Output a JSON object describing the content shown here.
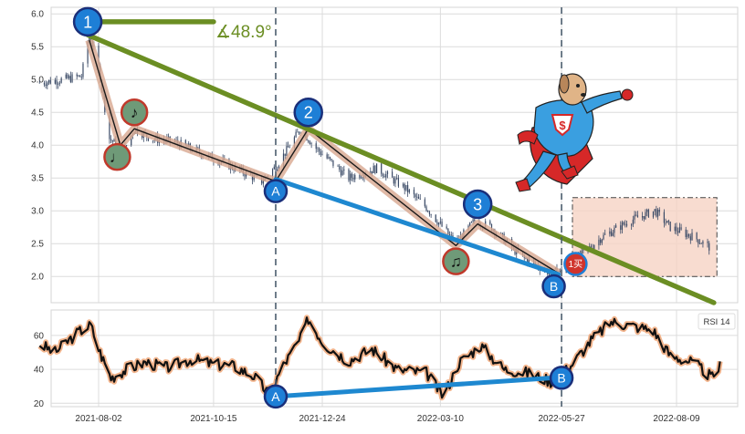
{
  "chart_data": [
    {
      "type": "candlestick",
      "panel": "price",
      "x_dates": [
        "2021-08-02",
        "2021-10-15",
        "2021-12-24",
        "2022-03-10",
        "2022-05-27",
        "2022-08-09"
      ],
      "ylim": [
        1.6,
        6.1
      ],
      "yticks": [
        2.0,
        2.5,
        3.0,
        3.5,
        4.0,
        4.5,
        5.0,
        5.5,
        6.0
      ],
      "grid": true,
      "approx_close_path": [
        [
          "2021-06-25",
          4.95
        ],
        [
          "2021-07-10",
          5.0
        ],
        [
          "2021-07-22",
          5.05
        ],
        [
          "2021-07-27",
          5.7
        ],
        [
          "2021-08-02",
          5.2
        ],
        [
          "2021-08-09",
          4.1
        ],
        [
          "2021-08-18",
          3.9
        ],
        [
          "2021-08-25",
          4.25
        ],
        [
          "2021-09-05",
          4.1
        ],
        [
          "2021-09-20",
          4.05
        ],
        [
          "2021-10-05",
          3.9
        ],
        [
          "2021-10-20",
          3.75
        ],
        [
          "2021-11-02",
          3.6
        ],
        [
          "2021-11-15",
          3.45
        ],
        [
          "2021-11-25",
          3.7
        ],
        [
          "2021-12-10",
          4.25
        ],
        [
          "2021-12-20",
          3.95
        ],
        [
          "2022-01-10",
          3.5
        ],
        [
          "2022-01-28",
          3.65
        ],
        [
          "2022-02-15",
          3.35
        ],
        [
          "2022-03-01",
          3.05
        ],
        [
          "2022-03-20",
          2.5
        ],
        [
          "2022-04-01",
          2.85
        ],
        [
          "2022-04-12",
          2.75
        ],
        [
          "2022-05-01",
          2.3
        ],
        [
          "2022-05-20",
          2.05
        ],
        [
          "2022-05-30",
          2.1
        ],
        [
          "2022-06-10",
          2.35
        ],
        [
          "2022-06-22",
          2.6
        ],
        [
          "2022-07-10",
          2.85
        ],
        [
          "2022-07-26",
          3.0
        ],
        [
          "2022-08-05",
          2.75
        ],
        [
          "2022-08-20",
          2.6
        ],
        [
          "2022-08-30",
          2.45
        ]
      ]
    },
    {
      "type": "line",
      "panel": "indicator",
      "series": [
        {
          "name": "RSI 14",
          "values": [
            [
              "2021-06-25",
              55
            ],
            [
              "2021-07-05",
              50
            ],
            [
              "2021-07-20",
              62
            ],
            [
              "2021-07-28",
              66
            ],
            [
              "2021-08-02",
              52
            ],
            [
              "2021-08-10",
              35
            ],
            [
              "2021-08-20",
              40
            ],
            [
              "2021-09-01",
              44
            ],
            [
              "2021-09-15",
              41
            ],
            [
              "2021-10-01",
              46
            ],
            [
              "2021-10-15",
              43
            ],
            [
              "2021-10-28",
              42
            ],
            [
              "2021-11-10",
              36
            ],
            [
              "2021-11-20",
              25
            ],
            [
              "2021-11-28",
              41
            ],
            [
              "2021-12-10",
              58
            ],
            [
              "2021-12-15",
              70
            ],
            [
              "2021-12-25",
              55
            ],
            [
              "2022-01-10",
              45
            ],
            [
              "2022-01-25",
              52
            ],
            [
              "2022-02-10",
              40
            ],
            [
              "2022-03-01",
              38
            ],
            [
              "2022-03-12",
              24
            ],
            [
              "2022-03-22",
              44
            ],
            [
              "2022-04-05",
              54
            ],
            [
              "2022-04-20",
              40
            ],
            [
              "2022-05-05",
              38
            ],
            [
              "2022-05-20",
              33
            ],
            [
              "2022-06-01",
              41
            ],
            [
              "2022-06-15",
              57
            ],
            [
              "2022-06-28",
              68
            ],
            [
              "2022-07-10",
              66
            ],
            [
              "2022-07-25",
              63
            ],
            [
              "2022-08-05",
              48
            ],
            [
              "2022-08-20",
              44
            ],
            [
              "2022-09-01",
              35
            ],
            [
              "2022-09-06",
              42
            ]
          ]
        }
      ],
      "ylim": [
        18,
        75
      ],
      "yticks": [
        20,
        40,
        60
      ]
    }
  ],
  "annotations": {
    "wave_labels": [
      "1",
      "2",
      "3"
    ],
    "divergence_labels": [
      "A",
      "B"
    ],
    "angle_label": "∡48.9°",
    "buy_marker": "1买",
    "rsi_legend": "RSI 14"
  },
  "colors": {
    "candle": "#3a4a66",
    "trend_line": "#6b8e23",
    "support_line": "#1e88d0",
    "wave_band": "#d8a890",
    "rsi_glow": "#f2b48c",
    "marker_blue": "#1e7fd6",
    "marker_green": "#6f9a78",
    "marker_red_ring": "#c0392b",
    "buy_zone": "#f6d3c4",
    "vline": "#4b5d6e"
  },
  "icons": [
    "superhero-dog-icon",
    "music-note-icon"
  ]
}
